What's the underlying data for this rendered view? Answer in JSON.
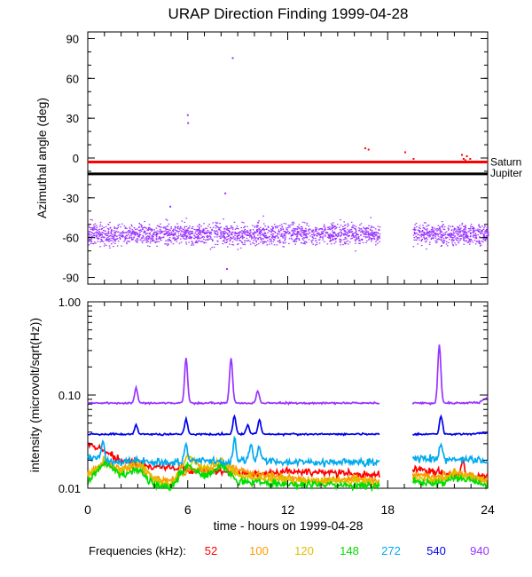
{
  "chart_data": [
    {
      "type": "scatter",
      "title": "URAP Direction Finding  1999-04-28",
      "ylabel": "Azimuthal angle (deg)",
      "xlim": [
        0,
        24
      ],
      "ylim": [
        -95,
        95
      ],
      "yticks": [
        90,
        60,
        30,
        0,
        -30,
        -60,
        -90
      ],
      "reference_lines": [
        {
          "name": "Saturn",
          "y": -3,
          "color": "#ff0000"
        },
        {
          "name": "Jupiter",
          "y": -12,
          "color": "#000000"
        }
      ],
      "data_gap_hours": [
        17.5,
        19.5
      ],
      "series": [
        {
          "name": "940",
          "band": "dense scatter centered near -57 deg (range about -45 to -70)",
          "color": "#9933ff",
          "outliers": [
            [
              5.95,
              33
            ],
            [
              5.97,
              27
            ],
            [
              8.65,
              76
            ],
            [
              8.3,
              -83
            ],
            [
              8.2,
              -26
            ],
            [
              4.9,
              -36
            ]
          ]
        },
        {
          "name": "52",
          "color": "#ff0000",
          "points": [
            [
              16.6,
              8
            ],
            [
              16.8,
              7
            ],
            [
              19.0,
              5
            ],
            [
              19.5,
              0
            ],
            [
              22.4,
              3
            ],
            [
              22.5,
              0
            ],
            [
              22.6,
              -1
            ],
            [
              22.7,
              2
            ],
            [
              22.8,
              -2
            ],
            [
              22.9,
              0
            ]
          ]
        }
      ]
    },
    {
      "type": "line",
      "ylabel": "intensity (microvolt/sqrt(Hz))",
      "xlabel": "time - hours on 1999-04-28",
      "xlim": [
        0,
        24
      ],
      "xticks": [
        0,
        6,
        12,
        18,
        24
      ],
      "yscale": "log",
      "ylim": [
        0.01,
        1.0
      ],
      "ytick_labels": [
        "1.00",
        "0.10",
        "0.01"
      ],
      "data_gap_hours": [
        17.5,
        19.5
      ],
      "legend_prefix": "Frequencies (kHz):",
      "series": [
        {
          "name": "52",
          "color": "#ff0000",
          "points": [
            [
              0,
              0.03
            ],
            [
              2,
              0.02
            ],
            [
              4,
              0.017
            ],
            [
              6,
              0.016
            ],
            [
              8,
              0.015
            ],
            [
              10,
              0.014
            ],
            [
              12,
              0.015
            ],
            [
              14,
              0.015
            ],
            [
              16,
              0.014
            ],
            [
              17.4,
              0.014
            ],
            [
              19.6,
              0.016
            ],
            [
              22,
              0.014
            ],
            [
              24,
              0.013
            ]
          ],
          "peaks": [
            [
              22.5,
              0.02
            ]
          ]
        },
        {
          "name": "100",
          "color": "#ff9900",
          "points": [
            [
              0,
              0.014
            ],
            [
              1,
              0.019
            ],
            [
              2,
              0.016
            ],
            [
              3,
              0.018
            ],
            [
              4,
              0.013
            ],
            [
              5,
              0.012
            ],
            [
              6,
              0.016
            ],
            [
              7,
              0.015
            ],
            [
              8,
              0.018
            ],
            [
              9,
              0.016
            ],
            [
              10,
              0.014
            ],
            [
              12,
              0.013
            ],
            [
              14,
              0.012
            ],
            [
              16,
              0.013
            ],
            [
              17.4,
              0.012
            ],
            [
              19.6,
              0.014
            ],
            [
              21,
              0.013
            ],
            [
              22,
              0.015
            ],
            [
              24,
              0.012
            ]
          ]
        },
        {
          "name": "120",
          "color": "#e0c000",
          "points": [
            [
              0,
              0.013
            ],
            [
              1,
              0.02
            ],
            [
              2,
              0.015
            ],
            [
              3,
              0.02
            ],
            [
              4,
              0.012
            ],
            [
              5,
              0.011
            ],
            [
              6,
              0.022
            ],
            [
              7,
              0.016
            ],
            [
              8,
              0.02
            ],
            [
              9,
              0.014
            ],
            [
              10,
              0.013
            ],
            [
              12,
              0.012
            ],
            [
              14,
              0.012
            ],
            [
              16,
              0.012
            ],
            [
              17.4,
              0.011
            ],
            [
              19.6,
              0.013
            ],
            [
              21,
              0.012
            ],
            [
              22,
              0.014
            ],
            [
              24,
              0.012
            ]
          ]
        },
        {
          "name": "148",
          "color": "#00dd00",
          "points": [
            [
              0,
              0.012
            ],
            [
              1,
              0.019
            ],
            [
              2,
              0.014
            ],
            [
              3,
              0.016
            ],
            [
              4,
              0.011
            ],
            [
              5,
              0.0105
            ],
            [
              6,
              0.018
            ],
            [
              7,
              0.013
            ],
            [
              8,
              0.018
            ],
            [
              9,
              0.012
            ],
            [
              10,
              0.0115
            ],
            [
              12,
              0.011
            ],
            [
              14,
              0.011
            ],
            [
              16,
              0.0105
            ],
            [
              17.4,
              0.0105
            ],
            [
              19.6,
              0.012
            ],
            [
              21,
              0.011
            ],
            [
              22,
              0.013
            ],
            [
              24,
              0.011
            ]
          ]
        },
        {
          "name": "272",
          "color": "#00aaee",
          "points": [
            [
              0,
              0.022
            ],
            [
              1,
              0.02
            ],
            [
              2,
              0.019
            ],
            [
              3,
              0.02
            ],
            [
              4,
              0.019
            ],
            [
              5,
              0.019
            ],
            [
              7,
              0.02
            ],
            [
              8,
              0.019
            ],
            [
              10,
              0.02
            ],
            [
              12,
              0.019
            ],
            [
              14,
              0.019
            ],
            [
              16,
              0.019
            ],
            [
              17.4,
              0.019
            ],
            [
              19.6,
              0.021
            ],
            [
              22,
              0.02
            ],
            [
              24,
              0.02
            ]
          ],
          "peaks": [
            [
              0.9,
              0.032
            ],
            [
              5.9,
              0.03
            ],
            [
              8.8,
              0.035
            ],
            [
              9.8,
              0.03
            ],
            [
              10.3,
              0.028
            ],
            [
              21.2,
              0.03
            ]
          ]
        },
        {
          "name": "540",
          "color": "#0000ee",
          "points": [
            [
              0,
              0.038
            ],
            [
              2,
              0.038
            ],
            [
              4,
              0.038
            ],
            [
              6,
              0.038
            ],
            [
              8,
              0.038
            ],
            [
              10,
              0.038
            ],
            [
              12,
              0.038
            ],
            [
              14,
              0.038
            ],
            [
              16,
              0.038
            ],
            [
              17.4,
              0.038
            ],
            [
              19.6,
              0.038
            ],
            [
              22,
              0.038
            ],
            [
              24,
              0.039
            ]
          ],
          "peaks": [
            [
              2.9,
              0.048
            ],
            [
              5.9,
              0.055
            ],
            [
              8.8,
              0.06
            ],
            [
              9.6,
              0.048
            ],
            [
              10.3,
              0.055
            ],
            [
              21.2,
              0.06
            ]
          ]
        },
        {
          "name": "940",
          "color": "#9933ff",
          "points": [
            [
              0,
              0.082
            ],
            [
              2,
              0.082
            ],
            [
              4,
              0.082
            ],
            [
              6,
              0.082
            ],
            [
              8,
              0.082
            ],
            [
              10,
              0.082
            ],
            [
              12,
              0.082
            ],
            [
              14,
              0.082
            ],
            [
              16,
              0.082
            ],
            [
              17.4,
              0.082
            ],
            [
              19.6,
              0.082
            ],
            [
              22,
              0.082
            ],
            [
              23.5,
              0.083
            ],
            [
              24,
              0.095
            ]
          ],
          "peaks": [
            [
              2.9,
              0.12
            ],
            [
              5.9,
              0.25
            ],
            [
              8.6,
              0.25
            ],
            [
              10.2,
              0.11
            ],
            [
              21.1,
              0.35
            ]
          ]
        }
      ]
    }
  ]
}
